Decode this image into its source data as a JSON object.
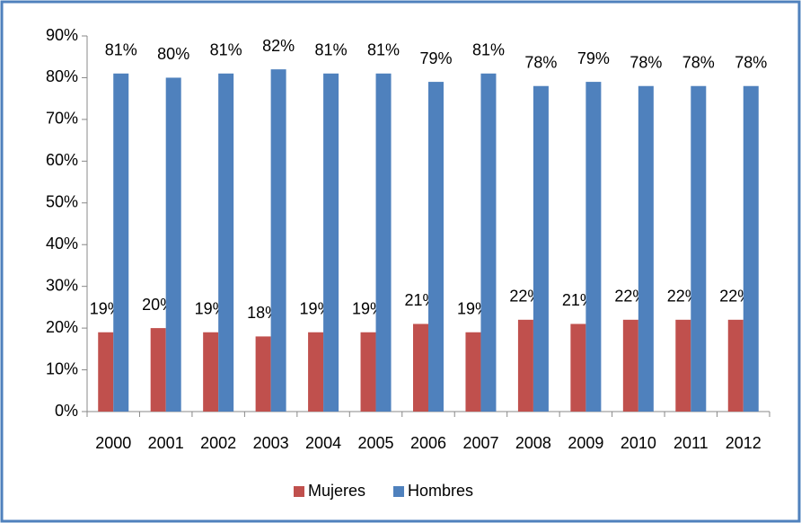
{
  "chart_data": {
    "type": "bar",
    "categories": [
      "2000",
      "2001",
      "2002",
      "2003",
      "2004",
      "2005",
      "2006",
      "2007",
      "2008",
      "2009",
      "2010",
      "2011",
      "2012"
    ],
    "series": [
      {
        "name": "Mujeres",
        "color": "#c0504d",
        "values": [
          19,
          20,
          19,
          18,
          19,
          19,
          21,
          19,
          22,
          21,
          22,
          22,
          22
        ],
        "value_labels": [
          "19%",
          "20%",
          "19%",
          "18%",
          "19%",
          "19%",
          "21%",
          "19%",
          "22%",
          "21%",
          "22%",
          "22%",
          "22%"
        ]
      },
      {
        "name": "Hombres",
        "color": "#4f81bd",
        "values": [
          81,
          80,
          81,
          82,
          81,
          81,
          79,
          81,
          78,
          79,
          78,
          78,
          78
        ],
        "value_labels": [
          "81%",
          "80%",
          "81%",
          "82%",
          "81%",
          "81%",
          "79%",
          "81%",
          "78%",
          "79%",
          "78%",
          "78%",
          "78%"
        ]
      }
    ],
    "ylim": [
      0,
      90
    ],
    "yticks": [
      {
        "value": 0,
        "label": "0%"
      },
      {
        "value": 10,
        "label": "10%"
      },
      {
        "value": 20,
        "label": "20%"
      },
      {
        "value": 30,
        "label": "30%"
      },
      {
        "value": 40,
        "label": "40%"
      },
      {
        "value": 50,
        "label": "50%"
      },
      {
        "value": 60,
        "label": "60%"
      },
      {
        "value": 70,
        "label": "70%"
      },
      {
        "value": 80,
        "label": "80%"
      },
      {
        "value": 90,
        "label": "90%"
      }
    ],
    "grid": false,
    "legend": "bottom"
  }
}
